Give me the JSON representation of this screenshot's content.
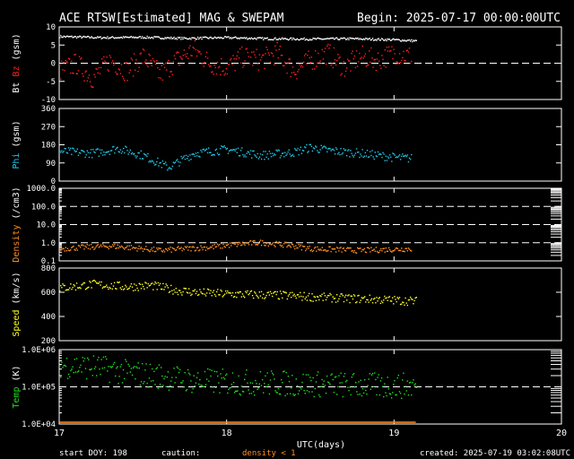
{
  "header": {
    "title": "ACE RTSW[Estimated] MAG & SWEPAM",
    "begin": "Begin: 2025-07-17 00:00:00UTC"
  },
  "footer": {
    "start_doy": "start DOY: 198",
    "caution": "caution:",
    "density_note": "density < 1",
    "created": "created: 2025-07-19 03:02:08UTC"
  },
  "colors": {
    "background": "#000000",
    "bt": "#ffffff",
    "bz": "#ff2020",
    "phi": "#20c8e8",
    "density": "#ff9020",
    "speed": "#ffff20",
    "temp": "#20e020",
    "axis": "#ffffff"
  },
  "chart_data": {
    "type": "scatter",
    "xlabel": "UTC(days)",
    "x_ticks": [
      "17",
      "18",
      "19",
      "20"
    ],
    "xlim": [
      17,
      20
    ],
    "data_end_x": 19.13,
    "panels": [
      {
        "id": "mag",
        "ylabels": [
          {
            "text": "Bt",
            "color": "#ffffff"
          },
          {
            "text": "Bz",
            "color": "#ff2020"
          },
          {
            "text": "(gsm)",
            "color": "#ffffff"
          }
        ],
        "ylim": [
          -10,
          10
        ],
        "y_ticks": [
          "-10",
          "-5",
          "0",
          "5",
          "10"
        ],
        "dashed_at": [
          0
        ],
        "series": [
          {
            "key": "Bt",
            "color": "#ffffff",
            "x": [
              17.0,
              17.25,
              17.5,
              17.75,
              18.0,
              18.25,
              18.5,
              18.75,
              19.0,
              19.13
            ],
            "y": [
              7.5,
              7.2,
              7.3,
              7.0,
              7.2,
              6.9,
              6.8,
              6.9,
              6.6,
              6.3
            ]
          },
          {
            "key": "Bz",
            "color": "#ff2020",
            "x": [
              17.0,
              17.1,
              17.2,
              17.3,
              17.4,
              17.5,
              17.6,
              17.7,
              17.8,
              17.9,
              18.0,
              18.1,
              18.2,
              18.3,
              18.4,
              18.5,
              18.6,
              18.7,
              18.8,
              18.9,
              19.0,
              19.1
            ],
            "y": [
              -2,
              0,
              -4,
              1,
              -2,
              2,
              -3,
              1,
              4,
              0,
              -1,
              2,
              1,
              3,
              -2,
              1,
              3,
              -1,
              2,
              1,
              3,
              2
            ]
          }
        ]
      },
      {
        "id": "phi",
        "ylabels": [
          {
            "text": "Phi",
            "color": "#20c8e8"
          },
          {
            "text": "(gsm)",
            "color": "#ffffff"
          }
        ],
        "ylim": [
          0,
          360
        ],
        "y_ticks": [
          "0",
          "90",
          "180",
          "270",
          "360"
        ],
        "dashed_at": [],
        "series": [
          {
            "key": "Phi",
            "color": "#20c8e8",
            "x": [
              17.0,
              17.2,
              17.35,
              17.5,
              17.65,
              17.8,
              18.0,
              18.2,
              18.4,
              18.5,
              18.6,
              18.8,
              19.0,
              19.1
            ],
            "y": [
              150,
              140,
              165,
              130,
              70,
              140,
              160,
              130,
              145,
              170,
              155,
              140,
              120,
              115
            ]
          }
        ]
      },
      {
        "id": "density",
        "ylabels": [
          {
            "text": "Density",
            "color": "#ff9020"
          },
          {
            "text": "(/cm3)",
            "color": "#ffffff"
          }
        ],
        "ylim": [
          0.1,
          1000
        ],
        "scale": "log",
        "y_ticks": [
          "0.1",
          "1.0",
          "10.0",
          "100.0",
          "1000.0"
        ],
        "dashed_at": [
          1000,
          100,
          10,
          1
        ],
        "series": [
          {
            "key": "Density",
            "color": "#ff9020",
            "x": [
              17.0,
              17.3,
              17.6,
              17.9,
              18.2,
              18.5,
              18.8,
              19.1
            ],
            "y": [
              0.5,
              0.7,
              0.4,
              0.6,
              1.1,
              0.5,
              0.4,
              0.5
            ]
          }
        ]
      },
      {
        "id": "speed",
        "ylabels": [
          {
            "text": "Speed",
            "color": "#ffff20"
          },
          {
            "text": "(km/s)",
            "color": "#ffffff"
          }
        ],
        "ylim": [
          200,
          800
        ],
        "y_ticks": [
          "200",
          "400",
          "600",
          "800"
        ],
        "dashed_at": [],
        "series": [
          {
            "key": "Speed",
            "color": "#ffff20",
            "x": [
              17.0,
              17.2,
              17.4,
              17.55,
              17.7,
              17.85,
              18.0,
              18.3,
              18.6,
              18.9,
              19.13
            ],
            "y": [
              640,
              670,
              650,
              660,
              620,
              600,
              590,
              580,
              560,
              545,
              530
            ]
          }
        ]
      },
      {
        "id": "temp",
        "ylabels": [
          {
            "text": "Temp",
            "color": "#20e020"
          },
          {
            "text": "(K)",
            "color": "#ffffff"
          }
        ],
        "ylim": [
          10000,
          1000000
        ],
        "scale": "log",
        "y_ticks": [
          "1.0E+04",
          "1.0E+05",
          "1.0E+06"
        ],
        "dashed_at": [
          100000
        ],
        "series": [
          {
            "key": "Temp",
            "color": "#20e020",
            "x": [
              17.0,
              17.2,
              17.4,
              17.6,
              17.8,
              18.0,
              18.3,
              18.6,
              18.9,
              19.13
            ],
            "y": [
              400000,
              350000,
              250000,
              200000,
              150000,
              140000,
              130000,
              120000,
              110000,
              110000
            ]
          }
        ]
      }
    ]
  }
}
